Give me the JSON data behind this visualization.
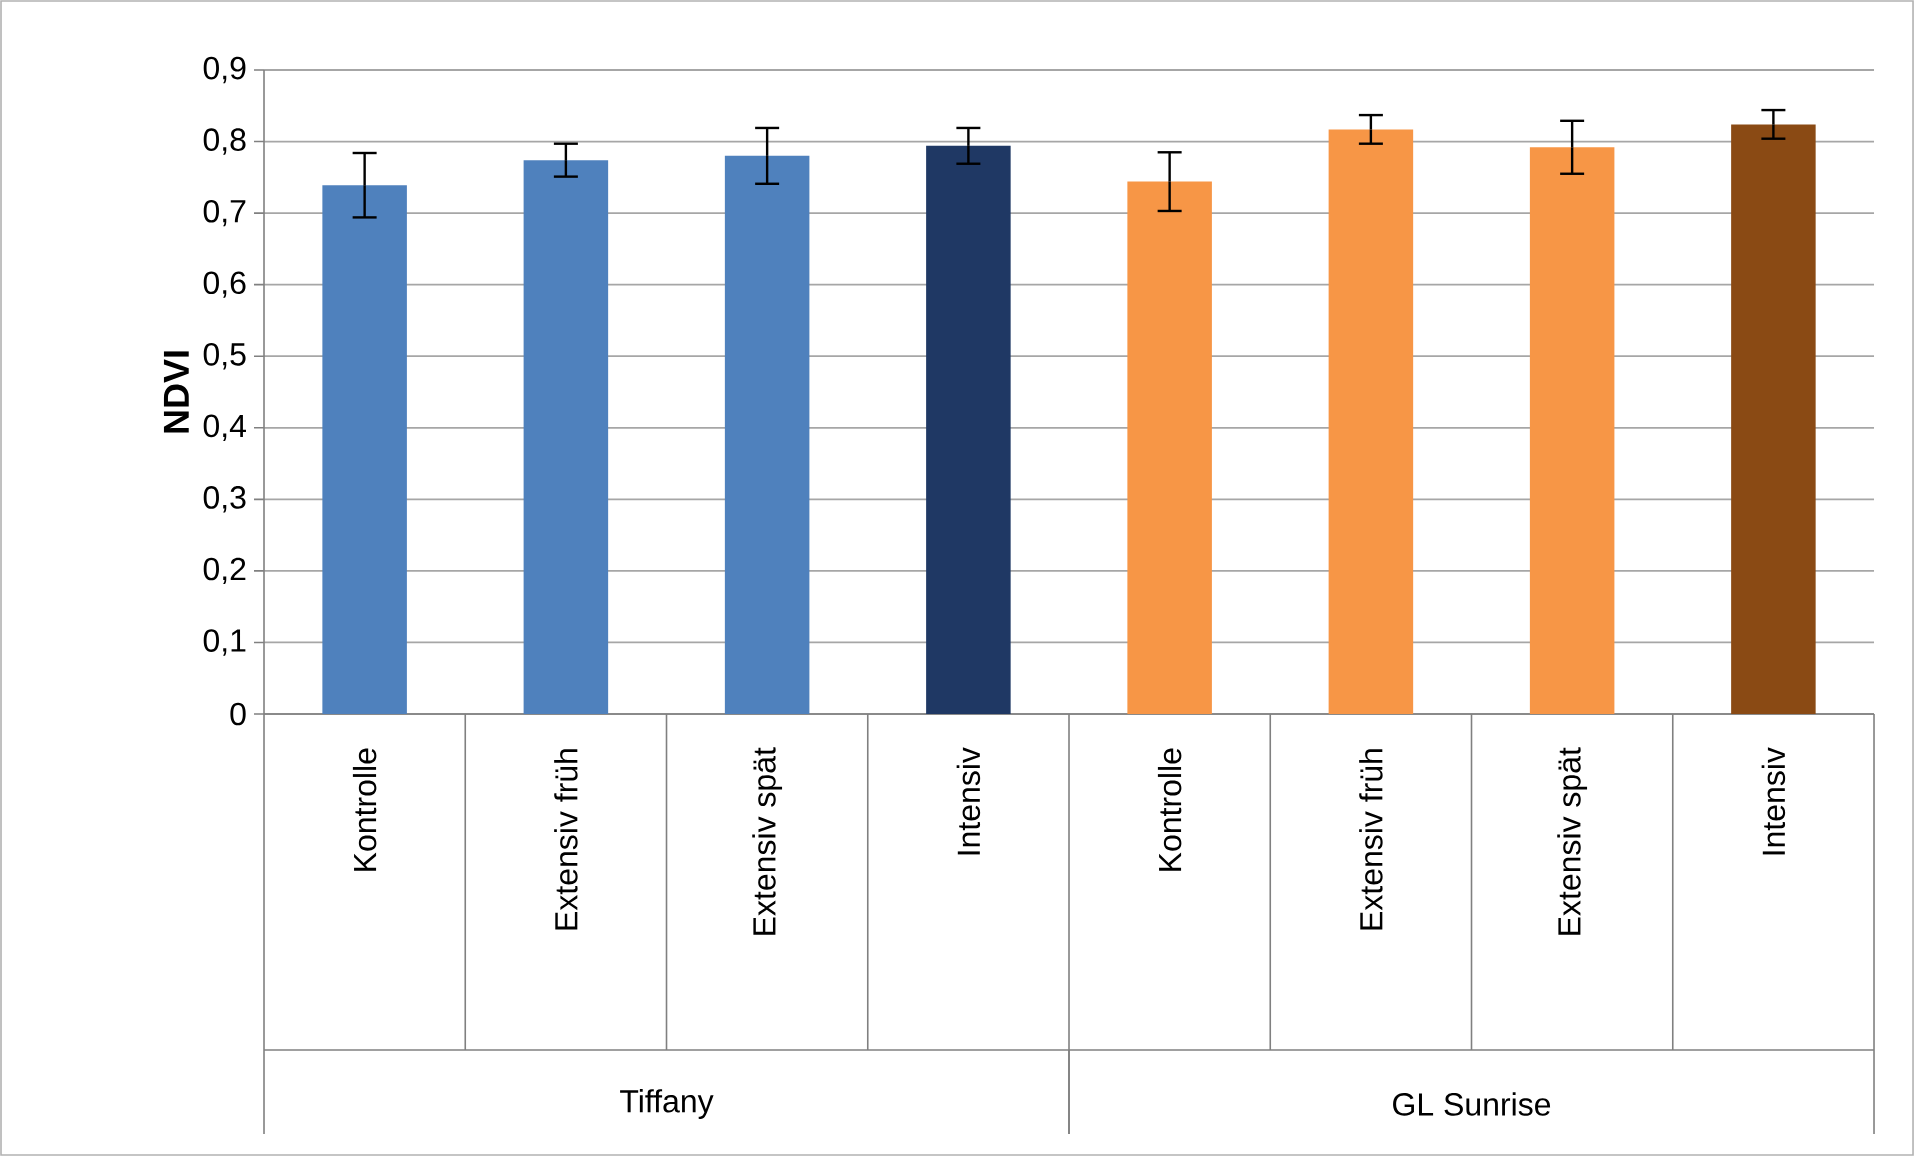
{
  "chart_data": {
    "type": "bar",
    "ylabel": "NDVI",
    "categories": [
      "Kontrolle",
      "Extensiv früh",
      "Extensiv spät",
      "Intensiv",
      "Kontrolle",
      "Extensiv früh",
      "Extensiv spät",
      "Intensiv"
    ],
    "colors": [
      "#4f81bd",
      "#4f81bd",
      "#4f81bd",
      "#1f3864",
      "#f79646",
      "#f79646",
      "#f79646",
      "#8a4a14"
    ],
    "values": [
      0.739,
      0.774,
      0.78,
      0.794,
      0.744,
      0.817,
      0.792,
      0.824
    ],
    "errors": [
      0.045,
      0.023,
      0.039,
      0.025,
      0.041,
      0.02,
      0.037,
      0.02
    ],
    "annotations": [
      "Tiffany",
      "GL Sunrise"
    ],
    "ylim": [
      0,
      0.9
    ],
    "yticks": [
      {
        "value": 0,
        "label": "0"
      },
      {
        "value": 0.1,
        "label": "0,1"
      },
      {
        "value": 0.2,
        "label": "0,2"
      },
      {
        "value": 0.3,
        "label": "0,3"
      },
      {
        "value": 0.4,
        "label": "0,4"
      },
      {
        "value": 0.5,
        "label": "0,5"
      },
      {
        "value": 0.6,
        "label": "0,6"
      },
      {
        "value": 0.7,
        "label": "0,7"
      },
      {
        "value": 0.8,
        "label": "0,8"
      },
      {
        "value": 0.9,
        "label": "0,9"
      }
    ],
    "grid": "y"
  }
}
